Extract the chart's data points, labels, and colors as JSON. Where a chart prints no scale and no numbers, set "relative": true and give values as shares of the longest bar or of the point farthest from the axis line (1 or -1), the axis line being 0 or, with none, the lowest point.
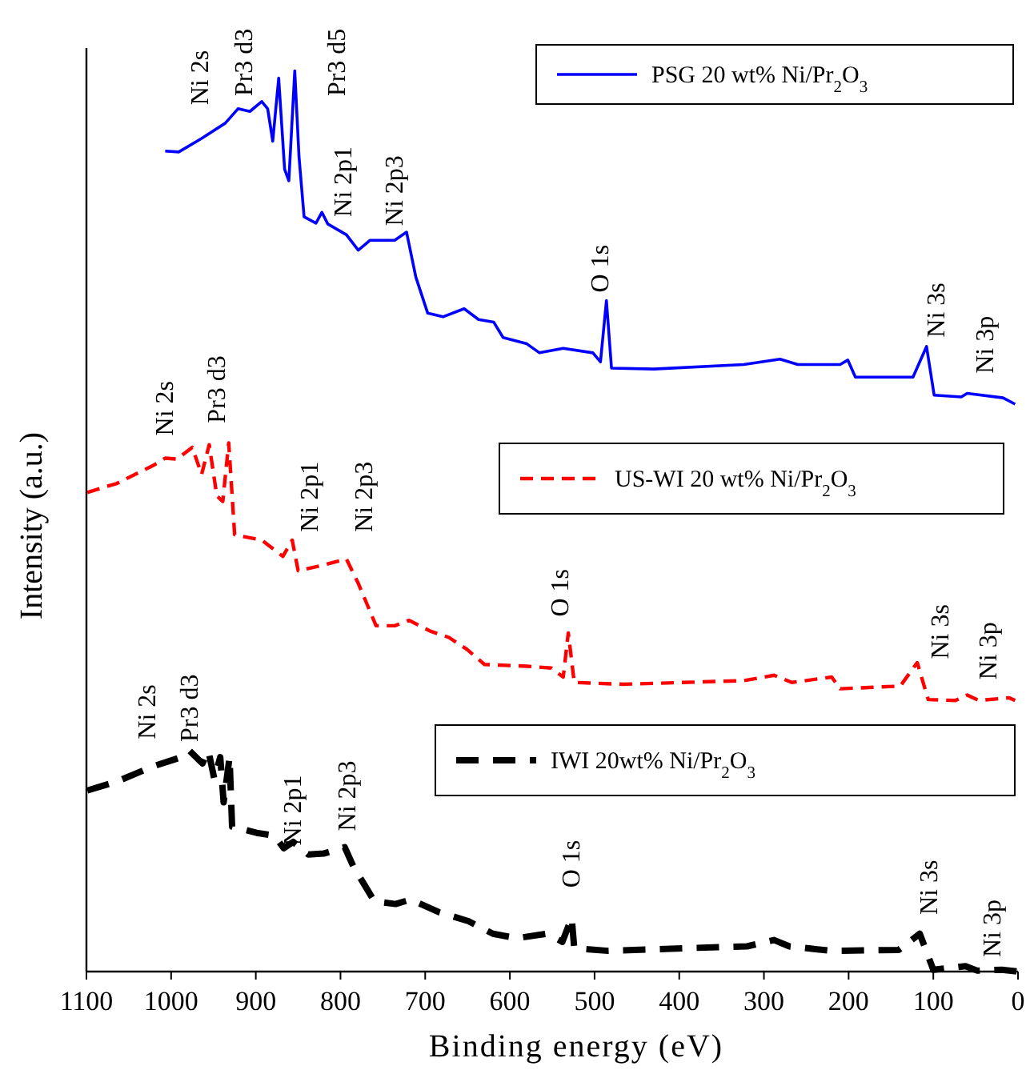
{
  "chart_data": {
    "type": "line",
    "relative": true,
    "xlabel": "Binding energy (eV)",
    "ylabel": "Intensity (a.u.)",
    "xlim": [
      1100,
      0
    ],
    "xticks": [
      1100,
      1000,
      900,
      800,
      700,
      600,
      500,
      400,
      300,
      200,
      100,
      0
    ],
    "legend": "right",
    "grid": false,
    "series": [
      {
        "name": "PSG 20 wt% Ni/Pr$_{2}$O$_{3}$",
        "color": "#0000ff",
        "line_style": "solid",
        "x": [
          1007,
          991,
          964,
          936,
          921,
          907,
          893,
          886,
          880,
          873,
          866,
          861,
          854,
          849,
          843,
          829,
          822,
          815,
          793,
          779,
          765,
          736,
          722,
          711,
          697,
          679,
          654,
          637,
          619,
          608,
          580,
          565,
          537,
          502,
          493,
          486,
          480,
          430,
          324,
          281,
          260,
          210,
          201,
          192,
          124,
          108,
          99,
          67,
          60,
          17.6,
          3.4
        ],
        "values": [
          0.911,
          0.91,
          0.925,
          0.942,
          0.958,
          0.955,
          0.966,
          0.958,
          0.922,
          0.992,
          0.891,
          0.878,
          1.0,
          0.905,
          0.838,
          0.831,
          0.843,
          0.83,
          0.818,
          0.801,
          0.812,
          0.812,
          0.821,
          0.771,
          0.731,
          0.727,
          0.736,
          0.724,
          0.721,
          0.704,
          0.697,
          0.687,
          0.692,
          0.687,
          0.677,
          0.745,
          0.67,
          0.669,
          0.674,
          0.68,
          0.674,
          0.674,
          0.679,
          0.66,
          0.66,
          0.694,
          0.64,
          0.638,
          0.642,
          0.637,
          0.63
        ]
      },
      {
        "name": "US-WI 20 wt% Ni/Pr$_{2}$O$_{3}$",
        "color": "#ff0000",
        "line_style": "dashed",
        "x": [
          1099,
          1064,
          1021,
          1007,
          993,
          975,
          964,
          955,
          946,
          939,
          932,
          925,
          893,
          868,
          857,
          850,
          822,
          793,
          779,
          758,
          736,
          719,
          694,
          672,
          651,
          630,
          580,
          551,
          537,
          531,
          524,
          466,
          324,
          288,
          267,
          220,
          210,
          139,
          119,
          106,
          74,
          60,
          46,
          10.4,
          3.4
        ],
        "values": [
          0.532,
          0.542,
          0.562,
          0.57,
          0.569,
          0.582,
          0.552,
          0.585,
          0.528,
          0.522,
          0.587,
          0.485,
          0.479,
          0.461,
          0.479,
          0.445,
          0.451,
          0.458,
          0.431,
          0.384,
          0.384,
          0.39,
          0.378,
          0.371,
          0.358,
          0.341,
          0.339,
          0.337,
          0.327,
          0.376,
          0.321,
          0.319,
          0.323,
          0.329,
          0.321,
          0.327,
          0.314,
          0.317,
          0.343,
          0.302,
          0.301,
          0.307,
          0.301,
          0.304,
          0.301
        ]
      },
      {
        "name": "IWI 20wt% Ni/Pr$_{2}$O$_{3}$",
        "color": "#000000",
        "line_style": "dashed",
        "x": [
          1099,
          1064,
          1021,
          988,
          978,
          963,
          956,
          949,
          942,
          938,
          931,
          928,
          899,
          878,
          867,
          856,
          838,
          820,
          795,
          785,
          760,
          735,
          717,
          684,
          649,
          620,
          592,
          556,
          538,
          527,
          524,
          484,
          391,
          320,
          288,
          270,
          220,
          141,
          116,
          100,
          62,
          48,
          19,
          0
        ],
        "values": [
          0.201,
          0.211,
          0.228,
          0.238,
          0.245,
          0.231,
          0.245,
          0.214,
          0.238,
          0.188,
          0.238,
          0.161,
          0.154,
          0.151,
          0.137,
          0.144,
          0.13,
          0.131,
          0.138,
          0.117,
          0.078,
          0.075,
          0.08,
          0.066,
          0.056,
          0.042,
          0.037,
          0.042,
          0.033,
          0.06,
          0.026,
          0.023,
          0.026,
          0.028,
          0.035,
          0.028,
          0.023,
          0.024,
          0.042,
          0.002,
          0.006,
          0.001,
          0.002,
          0.0
        ]
      }
    ],
    "annotations": [
      "Ni 2s",
      "Pr3 d3",
      "Pr3 d5",
      "Ni 2p1",
      "Ni 2p3",
      "O 1s",
      "Ni 3s",
      "Ni 3p",
      "Ni 2s",
      "Pr3 d3",
      "Ni 2p1",
      "Ni 2p3",
      "O 1s",
      "Ni 3s",
      "Ni 3p",
      "Ni 2s",
      "Pr3 d3",
      "Ni 2p1",
      "Ni 2p3",
      "O 1s",
      "Ni 3s",
      "Ni 3p"
    ]
  }
}
